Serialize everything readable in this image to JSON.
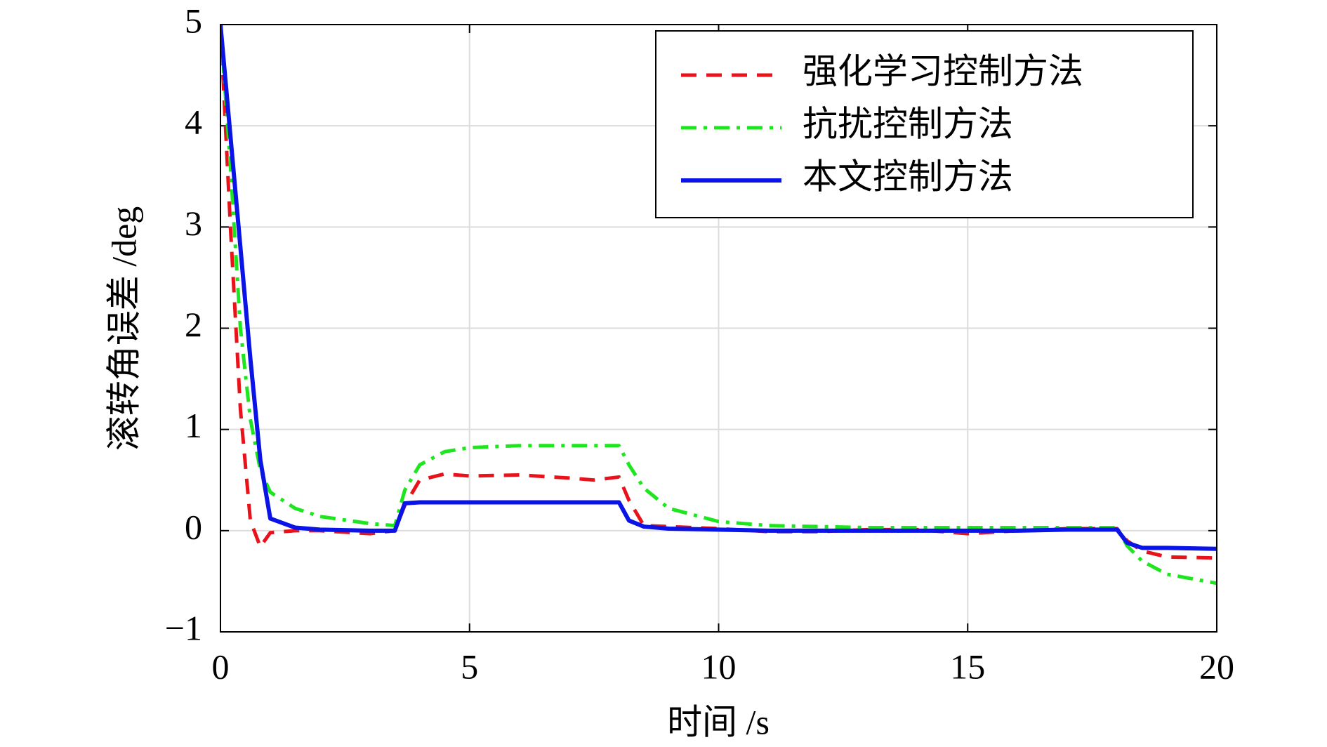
{
  "chart_data": {
    "type": "line",
    "x_label": "时间 /s",
    "y_label": "滚转角误差 /deg",
    "x": [
      0,
      0.2,
      0.4,
      0.6,
      0.8,
      1.0,
      1.5,
      2,
      3,
      3.5,
      3.7,
      4,
      4.5,
      5,
      6,
      7,
      7.5,
      8,
      8.2,
      8.5,
      9,
      10,
      11,
      12,
      13,
      14,
      15,
      16,
      17,
      18,
      18.2,
      18.5,
      19,
      20
    ],
    "series": [
      {
        "name": "强化学习控制方法",
        "color": "#e8121b",
        "style": "dashed",
        "values": [
          5,
          3.0,
          1.2,
          0.1,
          -0.16,
          -0.02,
          0,
          0,
          -0.03,
          0,
          0.25,
          0.5,
          0.56,
          0.54,
          0.55,
          0.52,
          0.5,
          0.53,
          0.3,
          0.05,
          0.04,
          0.02,
          -0.01,
          -0.01,
          0.01,
          0.01,
          -0.03,
          0,
          0.02,
          0.02,
          -0.1,
          -0.2,
          -0.26,
          -0.27
        ]
      },
      {
        "name": "抗扰控制方法",
        "color": "#1ee61e",
        "style": "dashdot",
        "values": [
          5,
          3.6,
          2.0,
          1.1,
          0.6,
          0.38,
          0.22,
          0.14,
          0.07,
          0.05,
          0.4,
          0.65,
          0.78,
          0.82,
          0.84,
          0.84,
          0.84,
          0.84,
          0.65,
          0.42,
          0.22,
          0.09,
          0.05,
          0.04,
          0.03,
          0.03,
          0.03,
          0.03,
          0.03,
          0.03,
          -0.15,
          -0.3,
          -0.43,
          -0.52
        ]
      },
      {
        "name": "本文控制方法",
        "color": "#0a14e6",
        "style": "solid",
        "values": [
          5,
          3.9,
          2.8,
          1.7,
          0.7,
          0.12,
          0.03,
          0.01,
          0,
          0,
          0.27,
          0.28,
          0.28,
          0.28,
          0.28,
          0.28,
          0.28,
          0.28,
          0.1,
          0.04,
          0.02,
          0.01,
          0,
          0,
          0,
          0,
          0,
          0,
          0.01,
          0.01,
          -0.12,
          -0.17,
          -0.17,
          -0.18
        ]
      }
    ],
    "xlim": [
      0,
      20
    ],
    "xticks": [
      0,
      5,
      10,
      15,
      20
    ],
    "ylim": [
      -1,
      5
    ],
    "yticks": [
      {
        "value": -1,
        "label": "−1"
      },
      0,
      1,
      2,
      3,
      4,
      5
    ],
    "grid": true,
    "legend": "top-right"
  }
}
